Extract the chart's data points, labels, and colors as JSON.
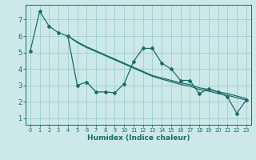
{
  "xlabel": "Humidex (Indice chaleur)",
  "bg_color": "#cce8e8",
  "grid_color": "#9ecece",
  "line_color": "#1a6b6b",
  "xlim": [
    -0.5,
    23.5
  ],
  "ylim": [
    0.6,
    7.9
  ],
  "x": [
    0,
    1,
    2,
    3,
    4,
    5,
    6,
    7,
    8,
    9,
    10,
    11,
    12,
    13,
    14,
    15,
    16,
    17,
    18,
    19,
    20,
    21,
    22,
    23
  ],
  "y_data": [
    5.1,
    7.5,
    6.6,
    6.2,
    6.0,
    3.0,
    3.2,
    2.6,
    2.6,
    2.55,
    3.1,
    4.45,
    5.25,
    5.25,
    4.35,
    4.0,
    3.3,
    3.3,
    2.5,
    2.8,
    2.6,
    2.3,
    1.3,
    2.1
  ],
  "trend1_x": [
    4,
    5,
    6,
    7,
    8,
    9,
    10,
    11,
    12,
    13,
    14,
    15,
    16,
    17,
    18,
    19,
    20,
    21,
    22,
    23
  ],
  "trend1_y": [
    6.0,
    5.65,
    5.35,
    5.1,
    4.85,
    4.6,
    4.35,
    4.1,
    3.85,
    3.6,
    3.45,
    3.3,
    3.15,
    3.05,
    2.85,
    2.75,
    2.6,
    2.5,
    2.35,
    2.2
  ],
  "trend2_x": [
    4,
    5,
    6,
    7,
    8,
    9,
    10,
    11,
    12,
    13,
    14,
    15,
    16,
    17,
    18,
    19,
    20,
    21,
    22,
    23
  ],
  "trend2_y": [
    6.0,
    5.6,
    5.3,
    5.05,
    4.8,
    4.55,
    4.3,
    4.05,
    3.8,
    3.55,
    3.38,
    3.22,
    3.06,
    2.95,
    2.75,
    2.65,
    2.5,
    2.4,
    2.25,
    2.1
  ],
  "yticks": [
    1,
    2,
    3,
    4,
    5,
    6,
    7
  ],
  "xticks": [
    0,
    1,
    2,
    3,
    4,
    5,
    6,
    7,
    8,
    9,
    10,
    11,
    12,
    13,
    14,
    15,
    16,
    17,
    18,
    19,
    20,
    21,
    22,
    23
  ]
}
